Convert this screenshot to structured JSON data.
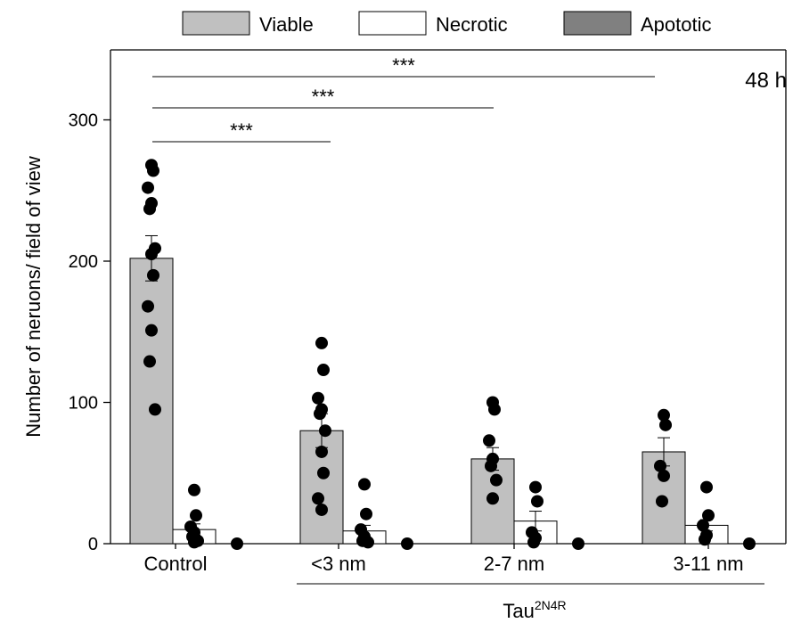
{
  "chart_data": {
    "type": "bar",
    "categories": [
      "Control",
      "<3 nm",
      "2-7 nm",
      "3-11 nm"
    ],
    "group_label": "Tau",
    "group_label_sup": "2N4R",
    "ylabel": "Number of neruons/ field of view",
    "ylim": [
      0,
      350
    ],
    "yticks": [
      0,
      100,
      200,
      300
    ],
    "annotation": "48 h",
    "legend_position": "top",
    "series": [
      {
        "name": "Viable",
        "color": "#c0c0c0",
        "values": [
          202,
          80,
          60,
          65
        ],
        "errors": [
          16,
          12,
          8,
          10
        ],
        "points": [
          [
            268,
            264,
            252,
            241,
            237,
            209,
            205,
            190,
            168,
            151,
            129,
            95
          ],
          [
            142,
            123,
            103,
            95,
            92,
            80,
            65,
            50,
            32,
            24
          ],
          [
            100,
            95,
            73,
            60,
            55,
            45,
            32
          ],
          [
            91,
            84,
            55,
            48,
            30
          ]
        ]
      },
      {
        "name": "Necrotic",
        "color": "#ffffff",
        "values": [
          10,
          9,
          16,
          13
        ],
        "errors": [
          4,
          4,
          7,
          4
        ],
        "points": [
          [
            38,
            20,
            12,
            8,
            5,
            2,
            1
          ],
          [
            42,
            21,
            10,
            5,
            2,
            1
          ],
          [
            40,
            30,
            8,
            4,
            1
          ],
          [
            40,
            20,
            13,
            6,
            3
          ]
        ]
      },
      {
        "name": "Apototic",
        "color": "#808080",
        "values": [
          0,
          0,
          0,
          0
        ],
        "errors": [
          0,
          0,
          0,
          0
        ],
        "points": [
          [
            0
          ],
          [
            0
          ],
          [
            0
          ],
          [
            0
          ]
        ]
      }
    ],
    "significance": [
      {
        "from": "Control",
        "to": "<3 nm",
        "label": "***"
      },
      {
        "from": "Control",
        "to": "2-7 nm",
        "label": "***"
      },
      {
        "from": "Control",
        "to": "3-11 nm",
        "label": "***"
      }
    ]
  }
}
